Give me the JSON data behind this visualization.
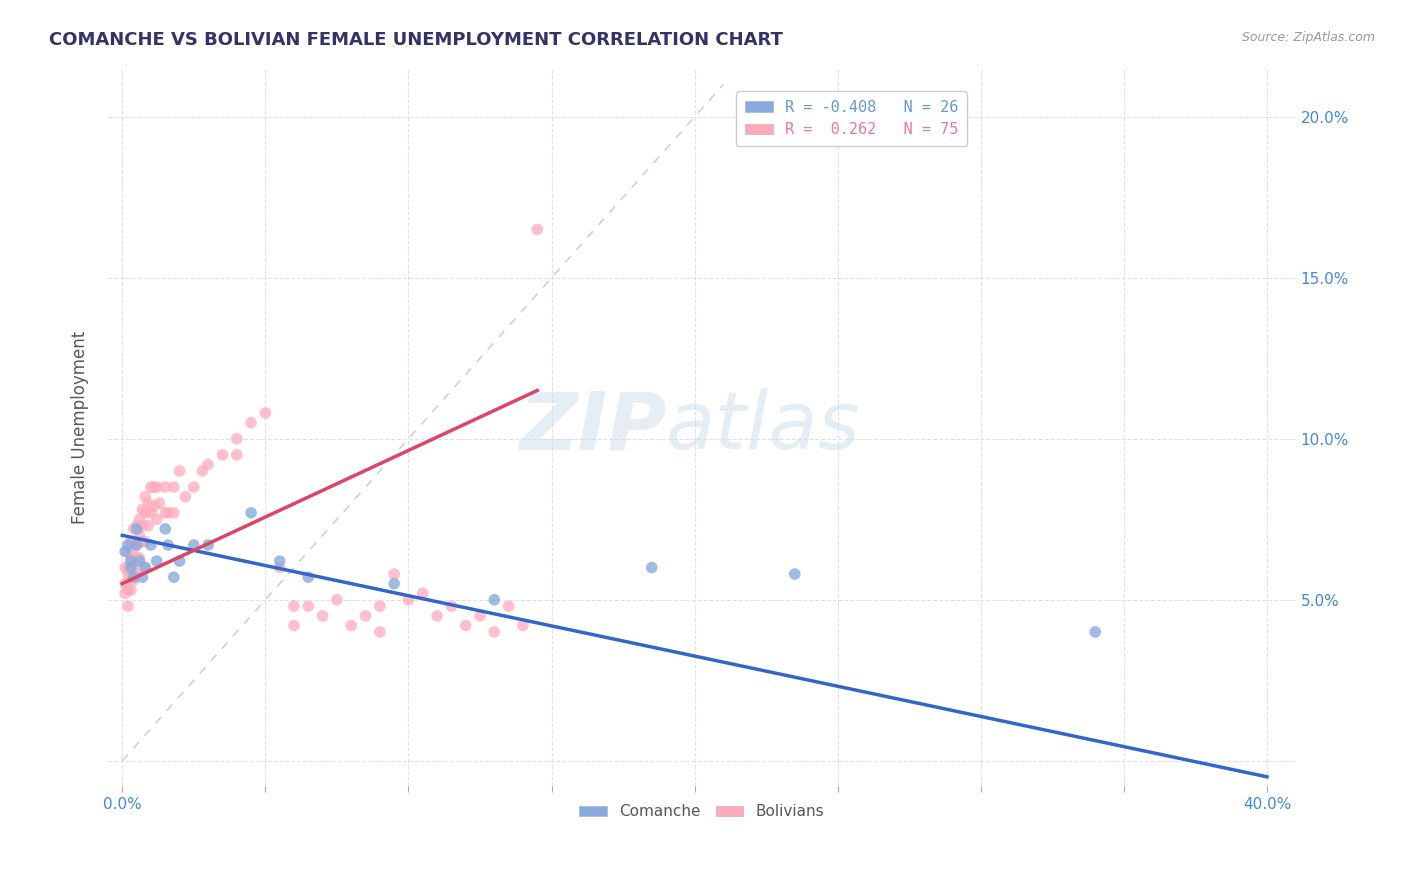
{
  "title": "COMANCHE VS BOLIVIAN FEMALE UNEMPLOYMENT CORRELATION CHART",
  "source": "Source: ZipAtlas.com",
  "xlim": [
    -0.005,
    0.41
  ],
  "ylim": [
    -0.008,
    0.215
  ],
  "watermark_zip": "ZIP",
  "watermark_atlas": "atlas",
  "legend_entries": [
    {
      "label_r": "R = -0.408",
      "label_n": "N = 26",
      "color": "#6699cc"
    },
    {
      "label_r": "R =  0.262",
      "label_n": "N = 75",
      "color": "#ee7799"
    }
  ],
  "comanche_x": [
    0.001,
    0.002,
    0.003,
    0.003,
    0.004,
    0.005,
    0.005,
    0.006,
    0.007,
    0.008,
    0.01,
    0.012,
    0.015,
    0.016,
    0.018,
    0.02,
    0.025,
    0.03,
    0.045,
    0.055,
    0.065,
    0.095,
    0.13,
    0.185,
    0.235,
    0.34
  ],
  "comanche_y": [
    0.065,
    0.067,
    0.062,
    0.06,
    0.057,
    0.067,
    0.072,
    0.062,
    0.057,
    0.06,
    0.067,
    0.062,
    0.072,
    0.067,
    0.057,
    0.062,
    0.067,
    0.067,
    0.077,
    0.062,
    0.057,
    0.055,
    0.05,
    0.06,
    0.058,
    0.04
  ],
  "bolivian_x": [
    0.001,
    0.001,
    0.001,
    0.002,
    0.002,
    0.002,
    0.002,
    0.002,
    0.003,
    0.003,
    0.003,
    0.003,
    0.004,
    0.004,
    0.004,
    0.004,
    0.005,
    0.005,
    0.005,
    0.005,
    0.006,
    0.006,
    0.006,
    0.007,
    0.007,
    0.007,
    0.008,
    0.008,
    0.008,
    0.008,
    0.009,
    0.009,
    0.01,
    0.01,
    0.011,
    0.011,
    0.012,
    0.012,
    0.013,
    0.015,
    0.015,
    0.016,
    0.018,
    0.018,
    0.02,
    0.022,
    0.025,
    0.028,
    0.03,
    0.035,
    0.04,
    0.04,
    0.045,
    0.05,
    0.055,
    0.06,
    0.06,
    0.065,
    0.07,
    0.075,
    0.08,
    0.085,
    0.09,
    0.09,
    0.095,
    0.1,
    0.105,
    0.11,
    0.115,
    0.12,
    0.125,
    0.13,
    0.135,
    0.14,
    0.145
  ],
  "bolivian_y": [
    0.06,
    0.055,
    0.052,
    0.065,
    0.06,
    0.058,
    0.053,
    0.048,
    0.068,
    0.063,
    0.058,
    0.053,
    0.072,
    0.066,
    0.06,
    0.056,
    0.073,
    0.068,
    0.063,
    0.058,
    0.075,
    0.07,
    0.063,
    0.078,
    0.073,
    0.068,
    0.082,
    0.077,
    0.068,
    0.06,
    0.08,
    0.073,
    0.085,
    0.077,
    0.085,
    0.079,
    0.085,
    0.075,
    0.08,
    0.085,
    0.077,
    0.077,
    0.085,
    0.077,
    0.09,
    0.082,
    0.085,
    0.09,
    0.092,
    0.095,
    0.1,
    0.095,
    0.105,
    0.108,
    0.06,
    0.048,
    0.042,
    0.048,
    0.045,
    0.05,
    0.042,
    0.045,
    0.048,
    0.04,
    0.058,
    0.05,
    0.052,
    0.045,
    0.048,
    0.042,
    0.045,
    0.04,
    0.048,
    0.042,
    0.165
  ],
  "comanche_color": "#88aadd",
  "bolivian_color": "#ffaabb",
  "comanche_trend_color": "#3366cc",
  "bolivian_trend_color": "#dd4466",
  "ref_line_color": "#cccccc",
  "title_color": "#333366",
  "source_color": "#999999",
  "axis_label_color": "#555566",
  "tick_color": "#4488dd",
  "grid_color": "#ddddee",
  "background_color": "#ffffff",
  "ylabel": "Female Unemployment",
  "ytick_labels": [
    "",
    "5.0%",
    "10.0%",
    "15.0%",
    "20.0%"
  ],
  "ytick_vals": [
    0.0,
    0.05,
    0.1,
    0.15,
    0.2
  ],
  "xtick_vals": [
    0.0,
    0.05,
    0.1,
    0.15,
    0.2,
    0.25,
    0.3,
    0.35,
    0.4
  ],
  "comanche_trend_x": [
    0.0,
    0.4
  ],
  "comanche_trend_y_start": 0.07,
  "comanche_trend_y_end": -0.005,
  "bolivian_trend_x": [
    0.0,
    0.145
  ],
  "bolivian_trend_y_start": 0.055,
  "bolivian_trend_y_end": 0.115
}
